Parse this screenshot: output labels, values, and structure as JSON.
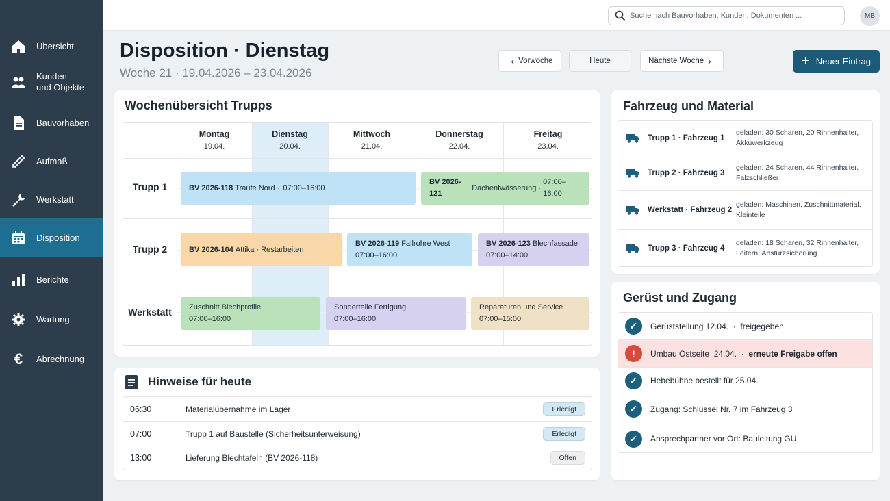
{
  "sidebar": {
    "items": [
      {
        "label": "Übersicht",
        "icon": "home-icon"
      },
      {
        "label": "Kunden\nund Objekte",
        "icon": "users-icon"
      },
      {
        "label": "Bauvorhaben",
        "icon": "document-icon"
      },
      {
        "label": "Aufmaß",
        "icon": "ruler-icon"
      },
      {
        "label": "Werkstatt",
        "icon": "wrench-icon"
      },
      {
        "label": "Disposition",
        "icon": "calendar-icon",
        "active": true
      },
      {
        "label": "Berichte",
        "icon": "bar-chart-icon"
      },
      {
        "label": "Wartung",
        "icon": "gear-icon"
      },
      {
        "label": "Abrechnung",
        "icon": "euro-icon"
      }
    ]
  },
  "topbar": {
    "search_placeholder": "Suche nach Bauvorhaben, Kunden, Dokumenten ...",
    "avatar": "MB"
  },
  "header": {
    "title": "Disposition · Dienstag",
    "subtitle": "Woche 21 · 19.04.2026 – 23.04.2026",
    "btn_prev": "Vorwoche",
    "btn_today": "Heute",
    "btn_next": "Nächste Woche",
    "btn_new": "Neuer Eintrag"
  },
  "week": {
    "title": "Wochenübersicht Trupps",
    "days": [
      {
        "name": "Montag",
        "date": "19.04."
      },
      {
        "name": "Dienstag",
        "date": "20.04."
      },
      {
        "name": "Mittwoch",
        "date": "21.04."
      },
      {
        "name": "Donnerstag",
        "date": "22.04."
      },
      {
        "name": "Freitag",
        "date": "23.04."
      }
    ],
    "rows": [
      "Trupp 1",
      "Trupp 2",
      "Werkstatt"
    ],
    "entries": [
      {
        "code": "BV 2026-118",
        "name": "Traufe Nord",
        "sep": " · ",
        "time": "07:00–16:00"
      },
      {
        "code": "BV 2026-121",
        "name": "Dachentwässerung",
        "sep": " · ",
        "time": "07:00–16:00"
      },
      {
        "code": "BV 2026-104",
        "name": "Attika · Restarbeiten"
      },
      {
        "code": "BV 2026-119",
        "name": "Fallrohre West",
        "time": "07:00–16:00"
      },
      {
        "code": "BV 2026-123",
        "name": "Blechfassade",
        "time": "07:00–14:00"
      },
      {
        "name": "Zuschnitt Blechprofile",
        "time": "07:00–16:00"
      },
      {
        "name": "Sonderteile Fertigung",
        "time": "07:00–16:00"
      },
      {
        "name": "Reparaturen und Service",
        "time": "07:00–15:00"
      }
    ]
  },
  "notes": {
    "title": "Hinweise für heute",
    "items": [
      {
        "time": "06:30",
        "text": "Materialübernahme im Lager",
        "status": "Erledigt"
      },
      {
        "time": "07:00",
        "text": "Trupp 1 auf Baustelle (Sicherheitsunterweisung)",
        "status": "Erledigt"
      },
      {
        "time": "13:00",
        "text": "Lieferung Blechtafeln (BV 2026-118)",
        "status": "Offen"
      }
    ]
  },
  "vehicles": {
    "title": "Fahrzeug und Material",
    "items": [
      {
        "name": "Trupp 1 · Fahrzeug 1",
        "load": "geladen: 30 Scharen, 20 Rinnenhalter, Akkuwerkzeug"
      },
      {
        "name": "Trupp 2 · Fahrzeug 3",
        "load": "geladen: 24 Scharen, 44 Rinnenhalter, Falzschließer"
      },
      {
        "name": "Werkstatt · Fahrzeug 2",
        "load": "geladen: Maschinen, Zuschnittmaterial, Kleinteile"
      },
      {
        "name": "Trupp 3 · Fahrzeug 4",
        "load": "geladen: 18 Scharen, 32 Rinnenhalter, Leitern, Absturzsicherung"
      }
    ]
  },
  "access": {
    "title": "Gerüst und Zugang",
    "items": [
      {
        "text": "Gerüststellung 12.04.  ·  freigegeben",
        "status": "ok"
      },
      {
        "text_a": "Umbau Ostseite  24.04.  ·  ",
        "text_b": "erneute Freigabe offen",
        "status": "warn"
      },
      {
        "text": "Hebebühne bestellt für 25.04.",
        "status": "ok"
      },
      {
        "text": "Zugang: Schlüssel Nr. 7 im Fahrzeug 3",
        "status": "ok"
      },
      {
        "text": "Ansprechpartner vor Ort: Bauleitung GU",
        "status": "ok"
      }
    ]
  },
  "colors": {
    "sidebar": "#2d3d4b",
    "sidebar_active": "#1d6e90",
    "primary": "#1b5a78",
    "warn": "#d9493c"
  }
}
